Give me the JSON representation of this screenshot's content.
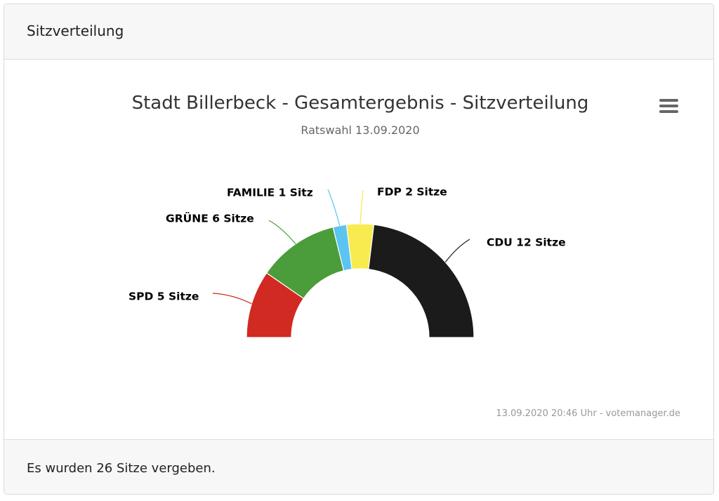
{
  "card": {
    "header_title": "Sitzverteilung",
    "footer_text": "Es wurden 26 Sitze vergeben."
  },
  "chart_data": {
    "type": "pie",
    "variant": "semicircle",
    "title": "Stadt Billerbeck - Gesamtergebnis - Sitzverteilung",
    "subtitle": "Ratswahl 13.09.2020",
    "credits": "13.09.2020 20:46 Uhr - votemanager.de",
    "unit_singular": "Sitz",
    "unit_plural": "Sitze",
    "series": [
      {
        "name": "SPD",
        "value": 5,
        "color": "#d12a22",
        "label": "SPD 5 Sitze"
      },
      {
        "name": "GRÜNE",
        "value": 6,
        "color": "#4b9c3a",
        "label": "GRÜNE 6 Sitze"
      },
      {
        "name": "FAMILIE",
        "value": 1,
        "color": "#5bc4f1",
        "label": "FAMILIE 1 Sitz"
      },
      {
        "name": "FDP",
        "value": 2,
        "color": "#f7eb4f",
        "label": "FDP 2 Sitze"
      },
      {
        "name": "CDU",
        "value": 12,
        "color": "#1b1b1b",
        "label": "CDU 12 Sitze"
      }
    ]
  },
  "icons": {
    "menu": "hamburger-menu-icon"
  }
}
